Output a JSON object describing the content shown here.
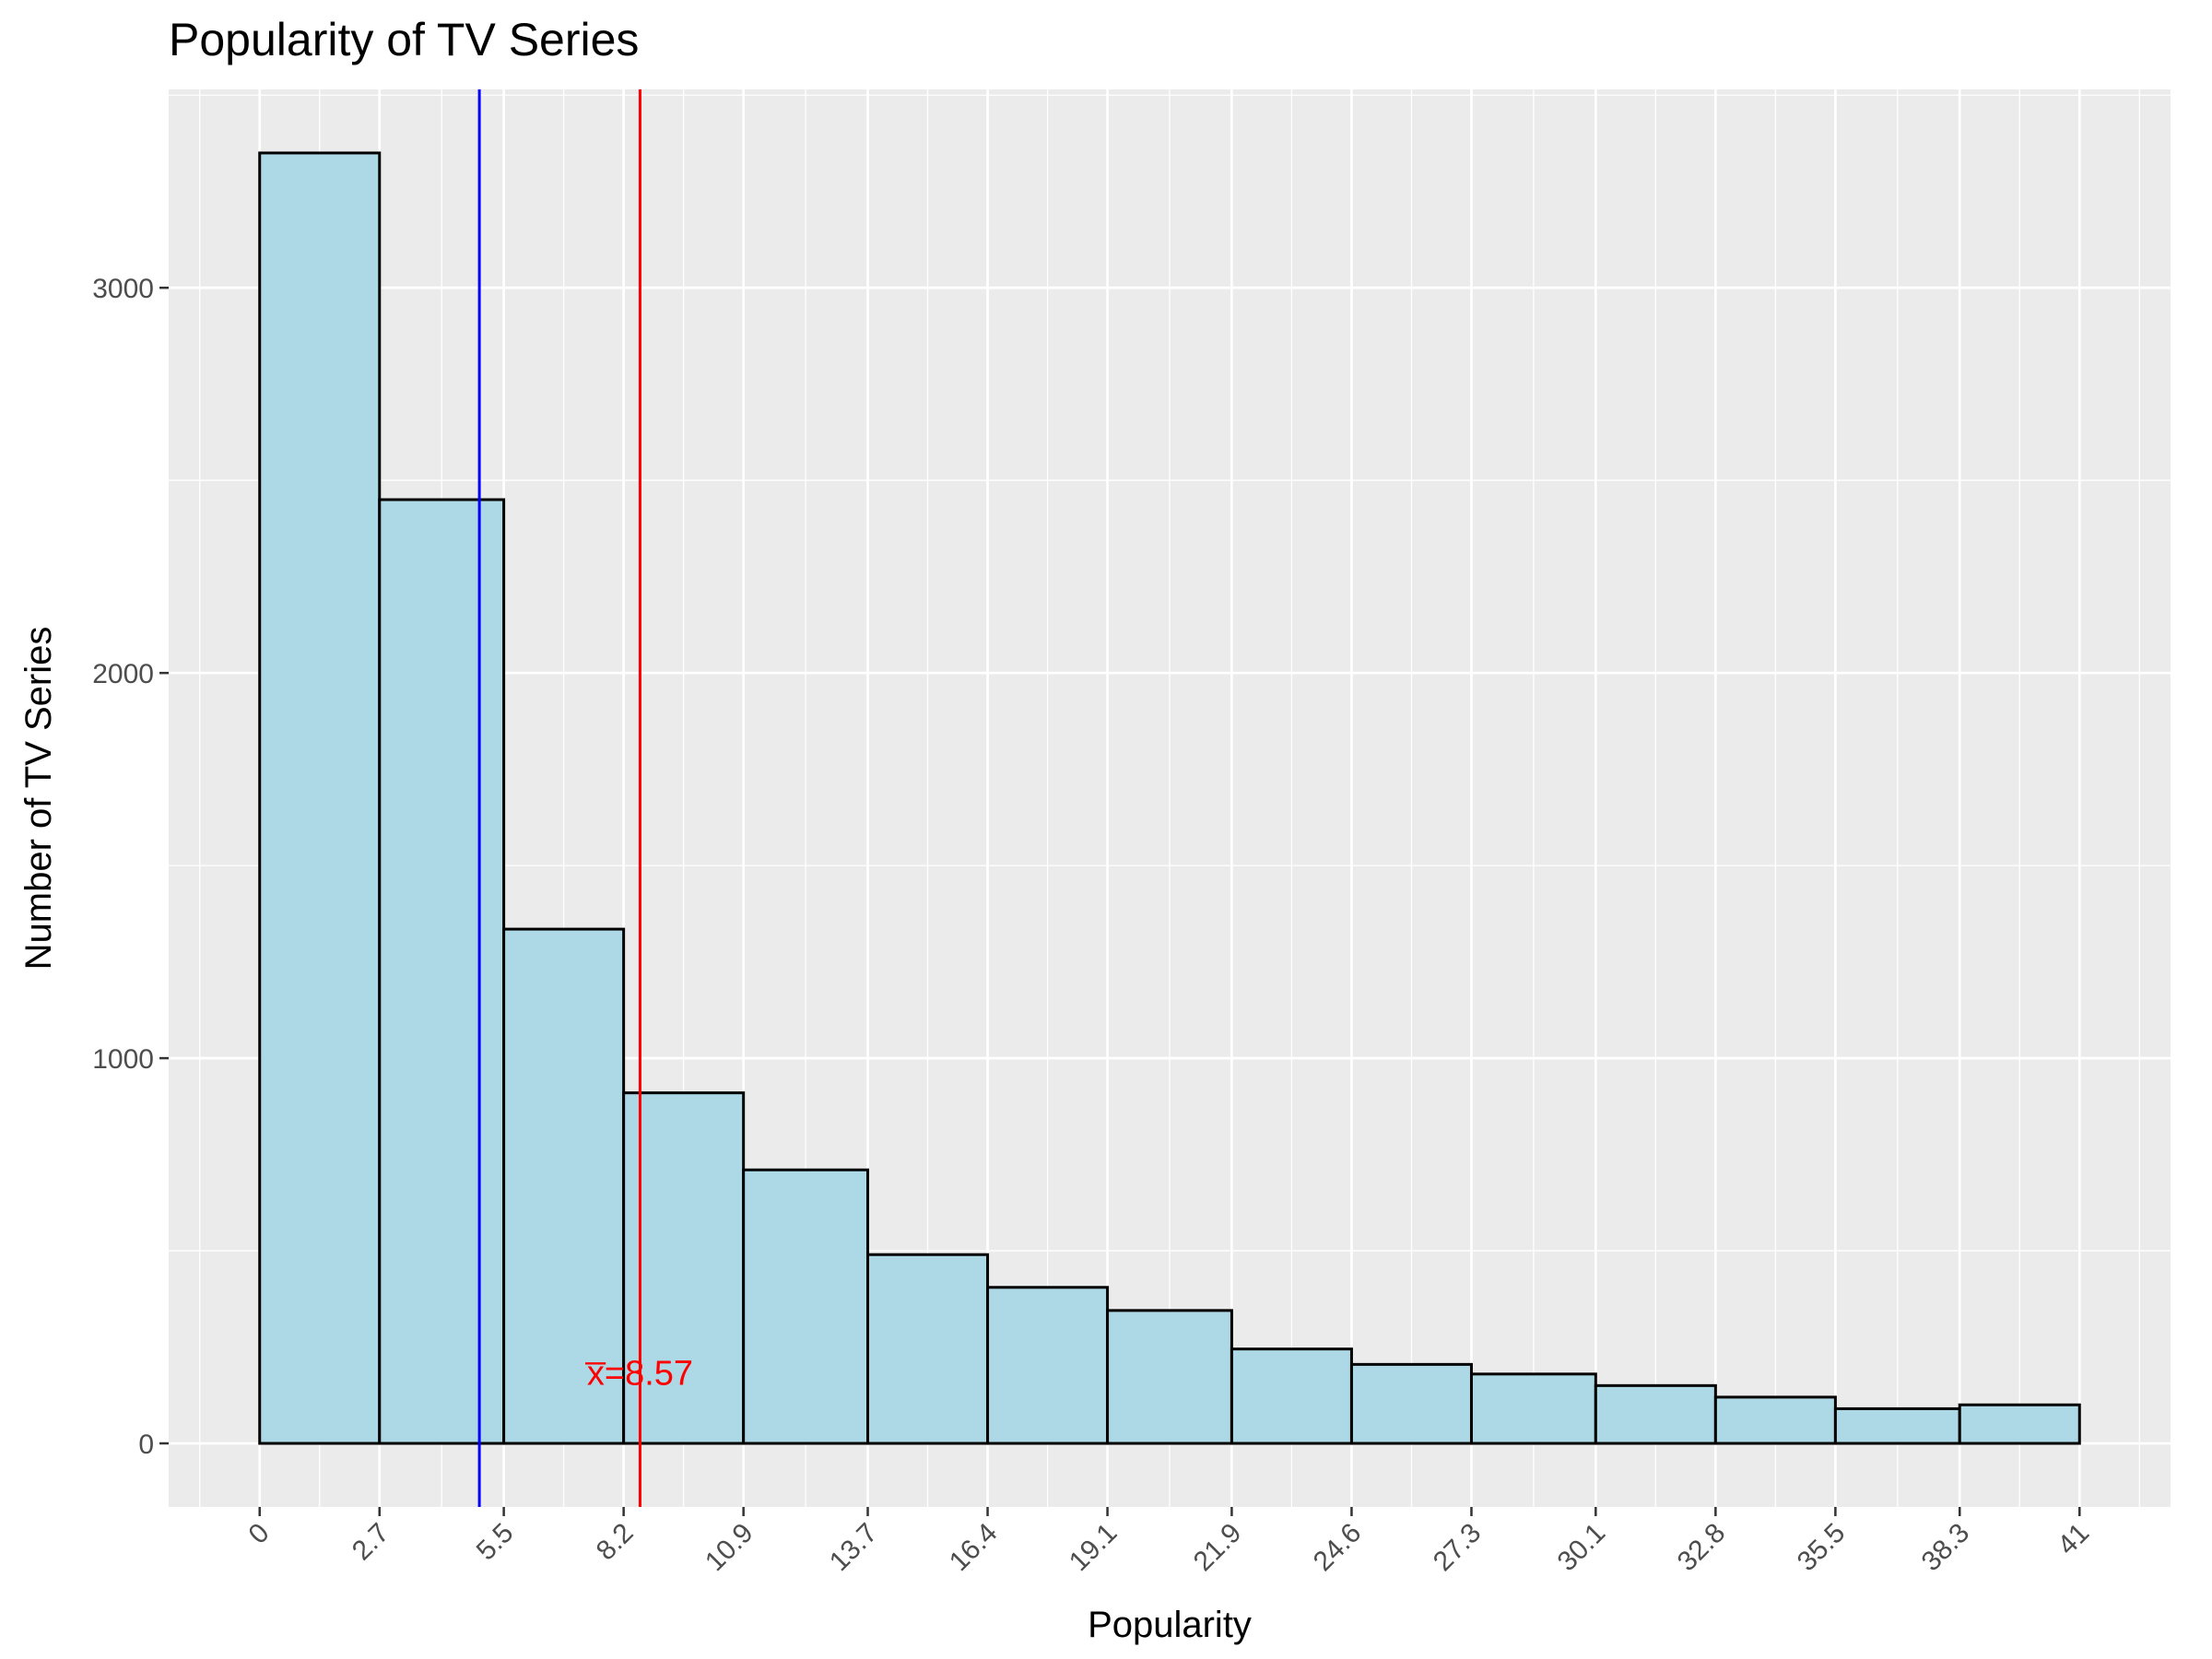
{
  "chart_data": {
    "type": "bar",
    "title": "Popularity of TV Series",
    "xlabel": "Popularity",
    "ylabel": "Number of TV Series",
    "bin_edges": [
      0,
      2.7,
      5.5,
      8.2,
      10.9,
      13.7,
      16.4,
      19.1,
      21.9,
      24.6,
      27.3,
      30.1,
      32.8,
      35.5,
      38.3,
      41
    ],
    "values": [
      3350,
      2450,
      1335,
      910,
      710,
      490,
      405,
      345,
      245,
      205,
      180,
      150,
      120,
      90,
      100
    ],
    "x_ticks": [
      "0",
      "2.7",
      "5.5",
      "8.2",
      "10.9",
      "13.7",
      "16.4",
      "19.1",
      "21.9",
      "24.6",
      "27.3",
      "30.1",
      "32.8",
      "35.5",
      "38.3",
      "41"
    ],
    "y_ticks": [
      "0",
      "1000",
      "2000",
      "3000"
    ],
    "xlim": [
      -2.05,
      43.05
    ],
    "ylim": [
      -165,
      3515
    ],
    "grid": true,
    "bar_fill": "#add8e6",
    "bar_edge": "#000000",
    "panel_background": "#ebebeb",
    "grid_color": "#ffffff",
    "vlines": [
      {
        "x": 4.95,
        "color": "#0000ff"
      },
      {
        "x": 8.57,
        "color": "#ff0000"
      }
    ],
    "annotation": {
      "text": "x̅=8.57",
      "x": 8.57,
      "y": 185,
      "color": "#ff0000"
    }
  }
}
